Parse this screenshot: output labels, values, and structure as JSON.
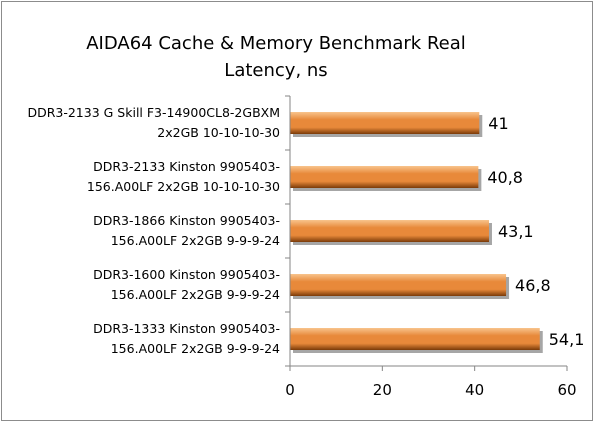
{
  "chart_data": {
    "type": "bar",
    "orientation": "horizontal",
    "title_lines": [
      "AIDA64 Cache & Memory Benchmark Real",
      "Latency, ns"
    ],
    "categories": [
      [
        "DDR3-2133 G Skill F3-14900CL8-2GBXM",
        "2x2GB 10-10-10-30"
      ],
      [
        "DDR3-2133 Kinston 9905403-",
        "156.A00LF 2x2GB 10-10-10-30"
      ],
      [
        "DDR3-1866 Kinston 9905403-",
        "156.A00LF 2x2GB 9-9-9-24"
      ],
      [
        "DDR3-1600 Kinston 9905403-",
        "156.A00LF 2x2GB 9-9-9-24"
      ],
      [
        "DDR3-1333 Kinston 9905403-",
        "156.A00LF 2x2GB 9-9-9-24"
      ]
    ],
    "values": [
      41,
      40.8,
      43.1,
      46.8,
      54.1
    ],
    "value_labels": [
      "41",
      "40,8",
      "43,1",
      "46,8",
      "54,1"
    ],
    "x_ticks": [
      0,
      20,
      40,
      60
    ],
    "xlim": [
      0,
      60
    ],
    "grid": false,
    "legend": "none",
    "bar_color": "#e8893a",
    "bar_highlight": "#f8c48c",
    "bar_shadow": "#7a3a08"
  }
}
